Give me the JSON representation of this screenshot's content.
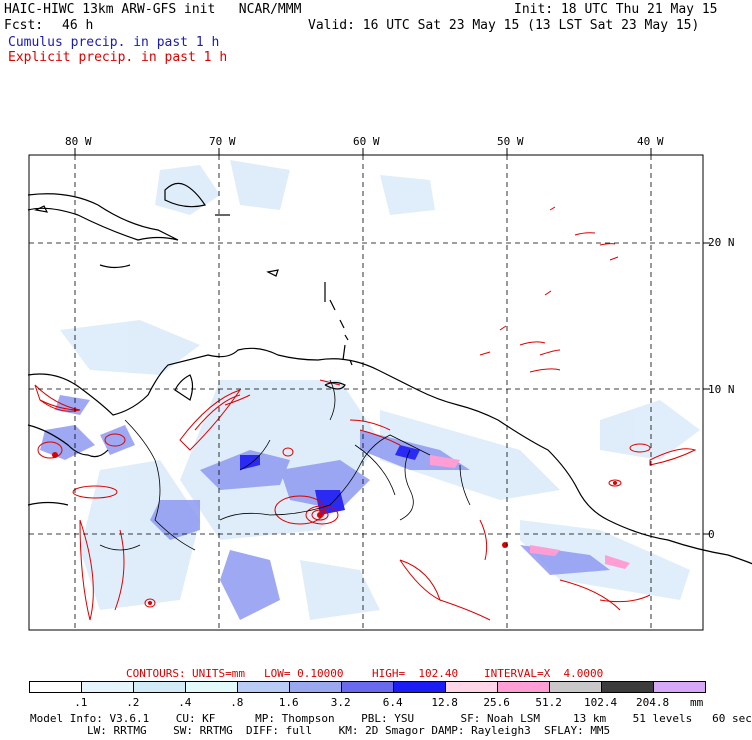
{
  "header": {
    "title": "HAIC-HIWC 13km ARW-GFS init   NCAR/MMM",
    "init": "Init: 18 UTC Thu 21 May 15",
    "fcst_label": "Fcst:",
    "fcst_value": "46 h",
    "valid": "Valid: 16 UTC Sat 23 May 15 (13 LST Sat 23 May 15)",
    "cumulus": "Cumulus precip. in past 1 h",
    "explicit": "Explicit precip. in past 1 h"
  },
  "map": {
    "lon_labels": [
      "80 W",
      "70 W",
      "60 W",
      "50 W",
      "40 W"
    ],
    "lat_labels": [
      "20 N",
      "10 N",
      "0"
    ]
  },
  "contour_info": {
    "contours": "CONTOURS:",
    "units": "UNITS=mm",
    "low": "LOW= 0.10000",
    "high": "HIGH=  102.40",
    "interval": "INTERVAL=X  4.0000"
  },
  "colorbar": {
    "levels": [
      ".1",
      ".2",
      ".4",
      ".8",
      "1.6",
      "3.2",
      "6.4",
      "12.8",
      "25.6",
      "51.2",
      "102.4",
      "204.8"
    ],
    "unit": "mm",
    "colors": [
      "#ffffff",
      "#e6f4fb",
      "#d2ecf7",
      "#e2fafa",
      "#b9ccf5",
      "#9aa8f0",
      "#6a6aee",
      "#1c1cf5",
      "#ffd6e8",
      "#ff9ed4",
      "#c8c8c8",
      "#3c3c3c",
      "#d8a8f8"
    ]
  },
  "footer": {
    "line1": "Model Info: V3.6.1    CU: KF      MP: Thompson    PBL: YSU       SF: Noah LSM     13 km    51 levels   60 sec",
    "line2": "LW: RRTMG    SW: RRTMG  DIFF: full    KM: 2D Smagor DAMP: Rayleigh3  SFLAY: MM5"
  }
}
